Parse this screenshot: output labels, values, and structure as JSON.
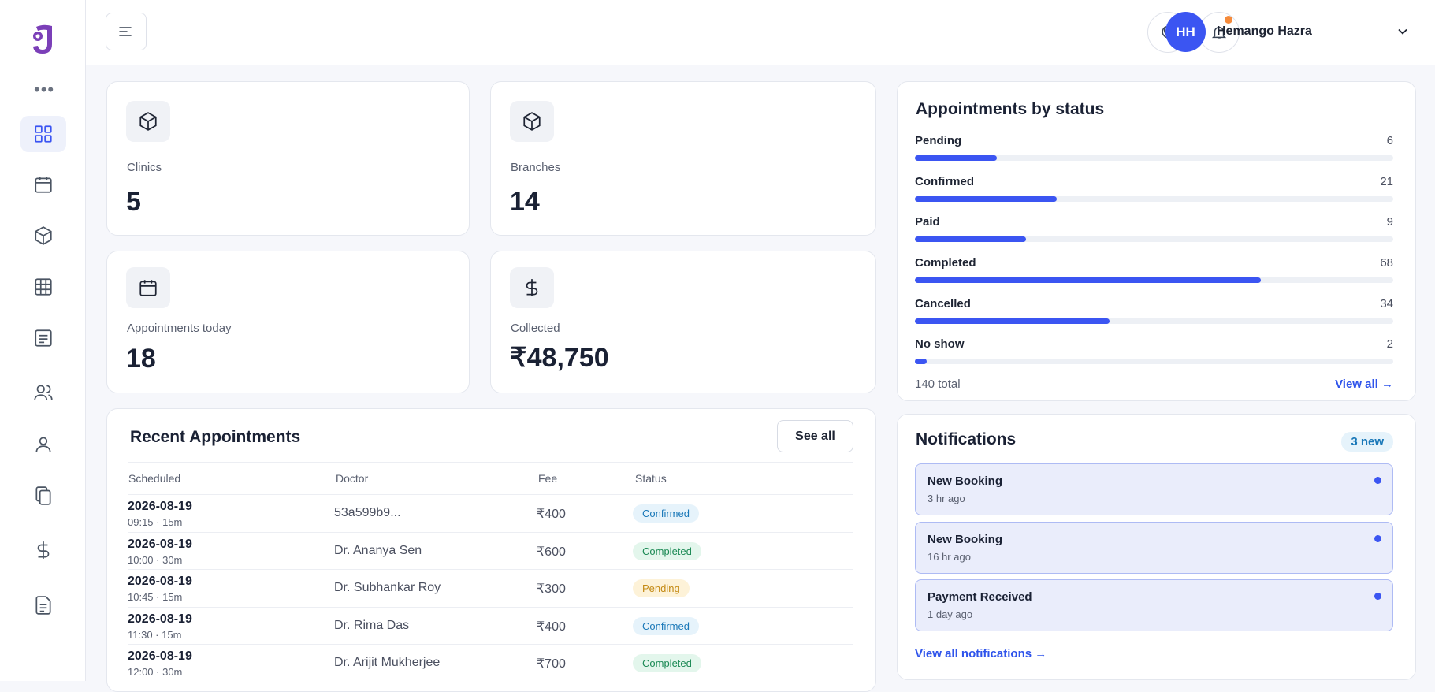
{
  "header": {
    "user_initials": "HH",
    "user_name": "Hemango Hazra"
  },
  "sidebar": {
    "items": [
      {
        "icon": "dashboard-grid-icon",
        "active": true
      },
      {
        "icon": "calendar-icon"
      },
      {
        "icon": "box-icon"
      },
      {
        "icon": "table-icon"
      },
      {
        "icon": "list-icon"
      },
      {
        "icon": "users-icon"
      },
      {
        "icon": "user-icon"
      },
      {
        "icon": "copy-icon"
      },
      {
        "icon": "dollar-icon"
      },
      {
        "icon": "document-icon"
      }
    ]
  },
  "stats": {
    "clinics": {
      "label": "Clinics",
      "value": "5"
    },
    "branches": {
      "label": "Branches",
      "value": "14"
    },
    "appointments_today": {
      "label": "Appointments today",
      "value": "18"
    },
    "collected": {
      "label": "Collected",
      "value": "₹48,750"
    }
  },
  "status_panel": {
    "title": "Appointments by status",
    "rows": [
      {
        "name": "Pending",
        "count": "6",
        "fraction": 0.172
      },
      {
        "name": "Confirmed",
        "count": "21",
        "fraction": 0.297
      },
      {
        "name": "Paid",
        "count": "9",
        "fraction": 0.232
      },
      {
        "name": "Completed",
        "count": "68",
        "fraction": 0.724
      },
      {
        "name": "Cancelled",
        "count": "34",
        "fraction": 0.407
      },
      {
        "name": "No show",
        "count": "2",
        "fraction": 0.025
      }
    ],
    "total": "140 total",
    "view_all": "View all →"
  },
  "recent": {
    "title": "Recent Appointments",
    "see_all": "See all",
    "columns": [
      "Scheduled",
      "Doctor",
      "Fee",
      "Status"
    ],
    "rows": [
      {
        "date": "2026-08-19",
        "time": "09:15 · 15m",
        "doctor": "53a599b9...",
        "fee": "₹400",
        "status": "Confirmed",
        "status_kind": "confirmed"
      },
      {
        "date": "2026-08-19",
        "time": "10:00 · 30m",
        "doctor": "Dr. Ananya Sen",
        "fee": "₹600",
        "status": "Completed",
        "status_kind": "completed"
      },
      {
        "date": "2026-08-19",
        "time": "10:45 · 15m",
        "doctor": "Dr. Subhankar Roy",
        "fee": "₹300",
        "status": "Pending",
        "status_kind": "pending"
      },
      {
        "date": "2026-08-19",
        "time": "11:30 · 15m",
        "doctor": "Dr. Rima Das",
        "fee": "₹400",
        "status": "Confirmed",
        "status_kind": "confirmed"
      },
      {
        "date": "2026-08-19",
        "time": "12:00 · 30m",
        "doctor": "Dr. Arijit Mukherjee",
        "fee": "₹700",
        "status": "Completed",
        "status_kind": "completed"
      }
    ]
  },
  "notifications": {
    "title": "Notifications",
    "badge": "3 new",
    "items": [
      {
        "title": "New Booking",
        "time": "3 hr ago"
      },
      {
        "title": "New Booking",
        "time": "16 hr ago"
      },
      {
        "title": "Payment Received",
        "time": "1 day ago"
      }
    ],
    "view_all": "View all notifications →"
  },
  "colors": {
    "accent": "#3b55f2",
    "brand": "#7b3fb8",
    "notification_dot": "#f58a3a"
  }
}
